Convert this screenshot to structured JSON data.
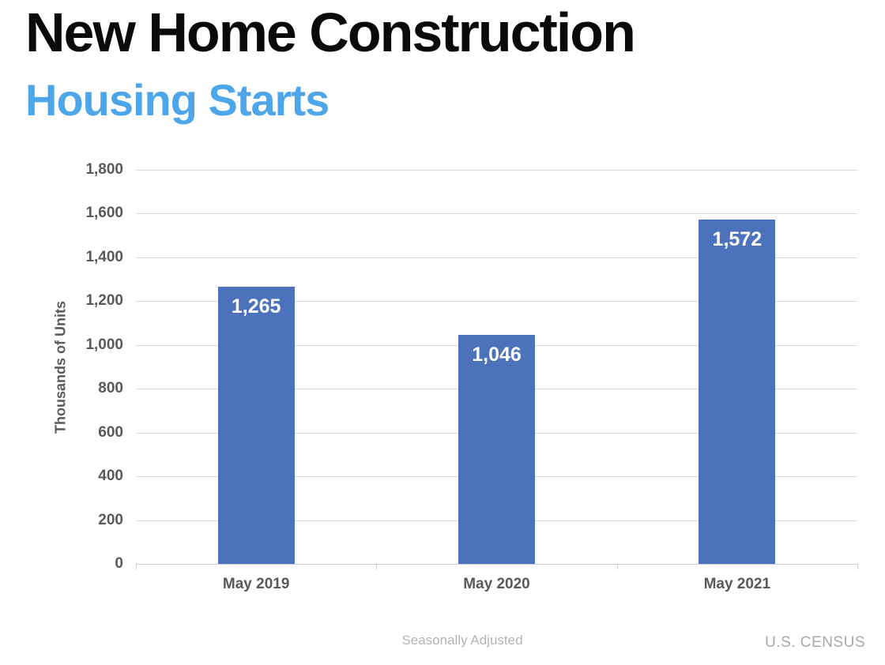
{
  "header": {
    "title": "New Home Construction",
    "subtitle": "Housing Starts",
    "title_color": "#0a0a0a",
    "subtitle_color": "#4da6e9"
  },
  "chart_data": {
    "type": "bar",
    "categories": [
      "May 2019",
      "May 2020",
      "May 2021"
    ],
    "values": [
      1265,
      1046,
      1572
    ],
    "value_labels": [
      "1,265",
      "1,046",
      "1,572"
    ],
    "title": "",
    "xlabel": "",
    "ylabel": "Thousands of Units",
    "ylim": [
      0,
      1800
    ],
    "ytick_step": 200,
    "ytick_labels": [
      "0",
      "200",
      "400",
      "600",
      "800",
      "1,000",
      "1,200",
      "1,400",
      "1,600",
      "1,800"
    ],
    "grid": true,
    "legend": "none",
    "bar_color": "#4c72bc",
    "bar_label_color": "#ffffff",
    "axis_text_color": "#595959",
    "gridline_color": "#d9d9d9"
  },
  "footer": {
    "note": "Seasonally Adjusted",
    "source": "U.S. CENSUS"
  }
}
